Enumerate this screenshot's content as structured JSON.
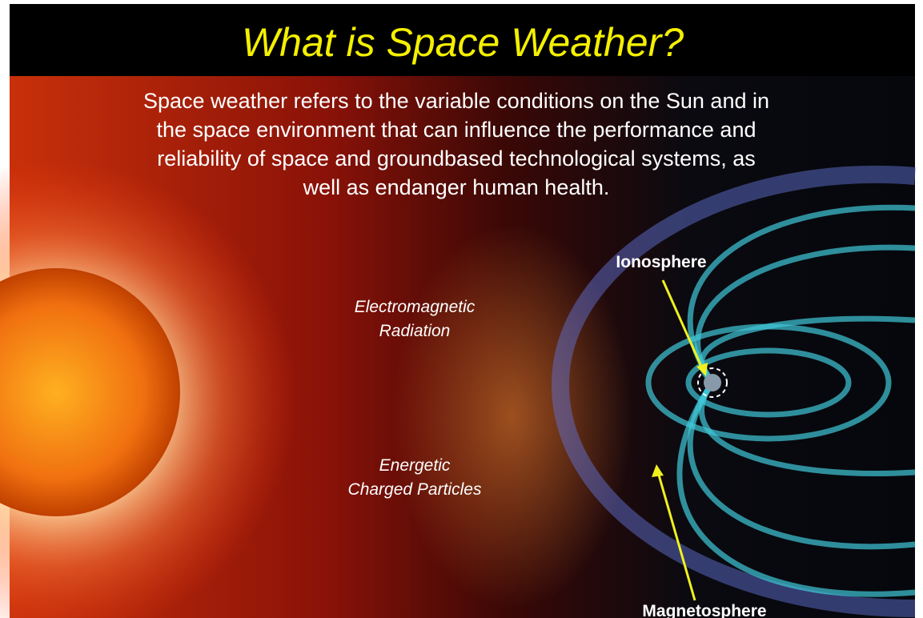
{
  "slide": {
    "title": "What is Space Weather?",
    "body_lines": [
      "Space weather refers to the variable conditions on the Sun and in",
      "the space environment that can influence the performance and",
      "reliability of space and groundbased technological systems, as",
      "well as endanger human health."
    ],
    "labels": {
      "radiation": [
        "Electromagnetic",
        "Radiation"
      ],
      "particles": [
        "Energetic",
        "Charged Particles"
      ],
      "ionosphere": "Ionosphere",
      "magnetosphere": "Magnetosphere"
    }
  }
}
